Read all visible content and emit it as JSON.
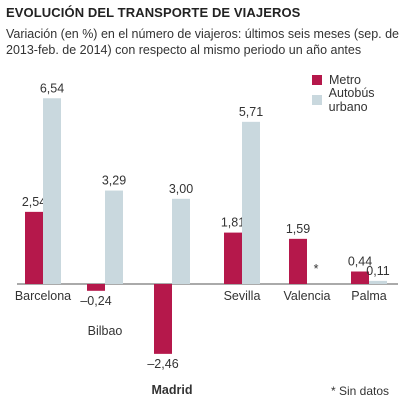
{
  "chart_data": {
    "type": "bar",
    "title": "EVOLUCIÓN DEL TRANSPORTE DE VIAJEROS",
    "subtitle": "Variación (en %) en el número de viajeros: últimos seis meses (sep. de 2013-feb. de 2014) con respecto al mismo periodo un año antes",
    "categories": [
      "Barcelona",
      "Bilbao",
      "Madrid",
      "Sevilla",
      "Valencia",
      "Palma"
    ],
    "series": [
      {
        "name": "Metro",
        "color": "#b5184b",
        "values": [
          2.54,
          -0.24,
          -2.46,
          1.81,
          1.59,
          0.44
        ],
        "labels": [
          "2,54",
          "–0,24",
          "–2,46",
          "1,81",
          "1,59",
          "0,44"
        ]
      },
      {
        "name": "Autobús urbano",
        "color": "#c9d8de",
        "values": [
          6.54,
          3.29,
          3.0,
          5.71,
          null,
          0.11
        ],
        "labels": [
          "6,54",
          "3,29",
          "3,00",
          "5,71",
          "*",
          "0,11"
        ]
      }
    ],
    "ylim": [
      -2.46,
      6.54
    ],
    "grid": false,
    "legend_position": "top-right",
    "footnote": "* Sin datos"
  }
}
